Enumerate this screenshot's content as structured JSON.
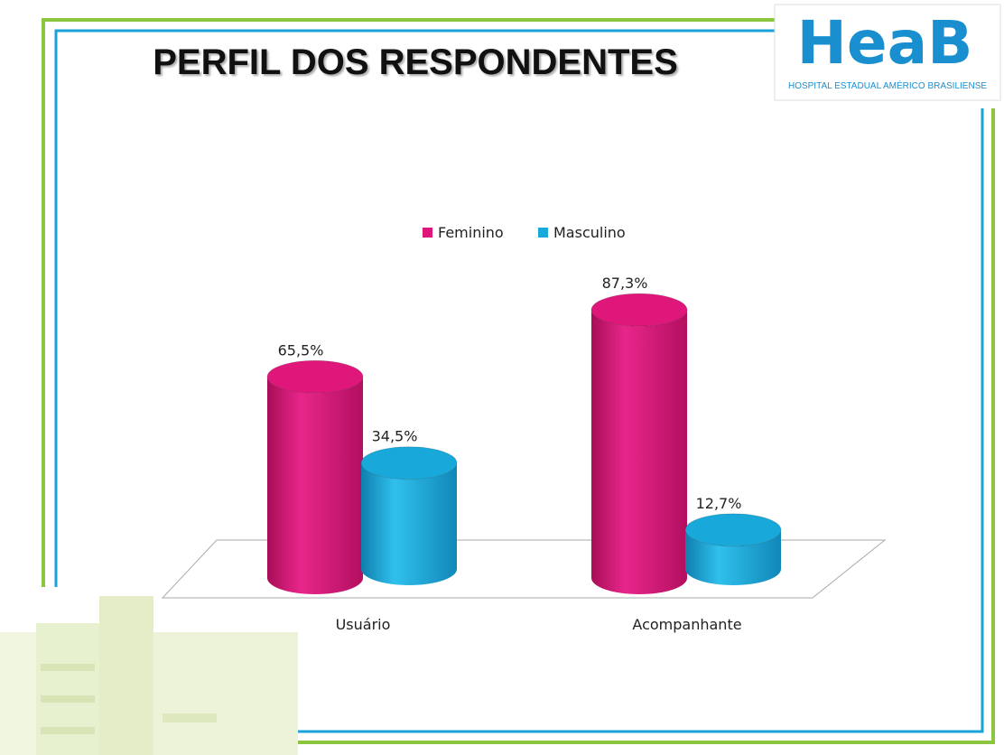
{
  "logo": {
    "name": "HeaB",
    "subtitle": "HOSPITAL ESTADUAL AMÉRICO BRASILIENSE"
  },
  "chart_data": {
    "type": "bar3d",
    "title": "PERFIL DOS RESPONDENTES",
    "categories": [
      "Usuário",
      "Acompanhante"
    ],
    "series": [
      {
        "name": "Feminino",
        "color": "#e0177a",
        "values": [
          65.5,
          87.3
        ],
        "value_labels": [
          "65,5%",
          "87,3%"
        ]
      },
      {
        "name": "Masculino",
        "color": "#18a8da",
        "values": [
          34.5,
          12.7
        ],
        "value_labels": [
          "34,5%",
          "12,7%"
        ]
      }
    ],
    "legend": "top"
  }
}
